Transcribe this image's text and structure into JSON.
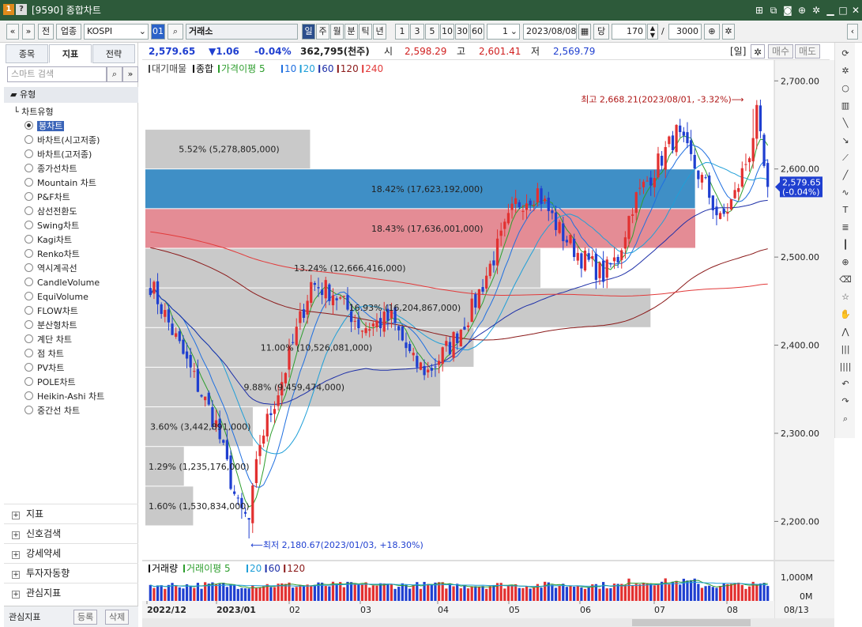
{
  "window": {
    "title": "[9590] 종합차트",
    "icons": {
      "app": "app-icon",
      "help": "help-icon"
    },
    "controls": [
      "new-window-icon",
      "copy-window-icon",
      "camera-icon",
      "lock-icon",
      "gear-icon",
      "minimize-icon",
      "maximize-icon",
      "close-icon"
    ]
  },
  "toolbar": {
    "prev": "«",
    "next": "»",
    "jeon": "전",
    "category": "업종",
    "symbol": "KOSPI",
    "badge": "01",
    "market": "거래소",
    "periods": [
      "일",
      "주",
      "월",
      "분",
      "틱",
      "년"
    ],
    "active_period": "일",
    "minutes": [
      "1",
      "3",
      "5",
      "10",
      "30",
      "60"
    ],
    "interval": "1",
    "date": "2023/08/08",
    "dang": "당",
    "count": "170",
    "slash": "/",
    "total": "3000"
  },
  "quote": {
    "price": "2,579.65",
    "change": "▼1.06",
    "pct": "-0.04%",
    "volume": "362,795(천주)",
    "open_label": "시",
    "open": "2,598.29",
    "high_label": "고",
    "high": "2,601.41",
    "low_label": "저",
    "low": "2,569.79",
    "period_label": "[일]",
    "buy": "매수",
    "sell": "매도"
  },
  "left_panel": {
    "tabs": [
      "종목",
      "지표",
      "전략"
    ],
    "active_tab": "지표",
    "search_placeholder": "스마트 검색",
    "type_header": "유형",
    "tree_root": "차트유형",
    "chart_types": [
      "봉차트",
      "바차트(시고저종)",
      "바차트(고저종)",
      "종가선차트",
      "Mountain 차트",
      "P&F차트",
      "삼선전환도",
      "Swing차트",
      "Kagi차트",
      "Renko차트",
      "역시계곡선",
      "CandleVolume",
      "EquiVolume",
      "FLOW차트",
      "분산형차트",
      "계단 차트",
      "점 차트",
      "PV차트",
      "POLE차트",
      "Heikin-Ashi 차트",
      "중간선 차트"
    ],
    "selected_type": "봉차트",
    "groups": [
      "지표",
      "신호검색",
      "강세약세",
      "투자자동향",
      "관심지표"
    ],
    "watch": {
      "label": "관심지표",
      "register": "등록",
      "delete": "삭제"
    }
  },
  "chart_data": {
    "type": "candlestick",
    "price_legend": [
      {
        "label": "대기매물",
        "color": "#444444"
      },
      {
        "label": "종합",
        "color": "#000000"
      },
      {
        "label": "가격이평 5",
        "color": "#2e9e2e"
      },
      {
        "label": "10",
        "color": "#1f6fe0"
      },
      {
        "label": "20",
        "color": "#1f9fd8"
      },
      {
        "label": "60",
        "color": "#1d2fa8"
      },
      {
        "label": "120",
        "color": "#8b1a1a"
      },
      {
        "label": "240",
        "color": "#e23a3a"
      }
    ],
    "volume_legend": [
      {
        "label": "거래량",
        "color": "#000000"
      },
      {
        "label": "거래이평 5",
        "color": "#2e9e2e"
      },
      {
        "label": "20",
        "color": "#1f9fd8"
      },
      {
        "label": "60",
        "color": "#1d2fa8"
      },
      {
        "label": "120",
        "color": "#8b1a1a"
      }
    ],
    "price_axis": {
      "min": 2160,
      "max": 2720,
      "ticks": [
        "2,700.00",
        "2,600.00",
        "2,500.00",
        "2,400.00",
        "2,300.00",
        "2,200.00"
      ]
    },
    "volume_axis": {
      "ticks": [
        "1,000M",
        "0M"
      ],
      "max": 1000
    },
    "x_axis": [
      "2022/12",
      "2023/01",
      "02",
      "03",
      "04",
      "05",
      "06",
      "07",
      "08"
    ],
    "last_date": "08/13",
    "current": {
      "price": "2,579.65",
      "pct": "(-0.04%)",
      "value": 2579.65
    },
    "high_note": "최고 2,668.21(2023/08/01, -3.32%)",
    "low_note": "최저 2,180.67(2023/01/03, +18.30%)",
    "high_value": 2668.21,
    "low_value": 2180.67,
    "volume_profile": [
      {
        "low": 2195,
        "high": 2240,
        "pct": 1.6,
        "label": "1.60% (1,530,834,000)"
      },
      {
        "low": 2240,
        "high": 2285,
        "pct": 1.29,
        "label": "1.29% (1,235,176,000)"
      },
      {
        "low": 2285,
        "high": 2330,
        "pct": 3.6,
        "label": "3.60% (3,442,891,000)"
      },
      {
        "low": 2330,
        "high": 2375,
        "pct": 9.88,
        "label": "9.88% (9,459,474,000)"
      },
      {
        "low": 2375,
        "high": 2420,
        "pct": 11.0,
        "label": "11.00% (10,526,081,000)"
      },
      {
        "low": 2420,
        "high": 2465,
        "pct": 16.93,
        "label": "16.93% (16,204,867,000)"
      },
      {
        "low": 2465,
        "high": 2510,
        "pct": 13.24,
        "label": "13.24% (12,666,416,000)"
      },
      {
        "low": 2510,
        "high": 2555,
        "pct": 18.43,
        "label": "18.43% (17,636,001,000)"
      },
      {
        "low": 2555,
        "high": 2600,
        "pct": 18.42,
        "label": "18.42% (17,623,192,000)"
      },
      {
        "low": 2600,
        "high": 2645,
        "pct": 5.52,
        "label": "5.52% (5,278,805,000)"
      }
    ],
    "ma_colors": {
      "ma5": "#2e9e2e",
      "ma10": "#1f6fe0",
      "ma20": "#1f9fd8",
      "ma60": "#1d2fa8",
      "ma120": "#8b1a1a",
      "ma240": "#e23a3a"
    },
    "up_color": "#e23030",
    "down_color": "#1f3fd0"
  },
  "right_tools": [
    "refresh-icon",
    "gear-icon",
    "circle-icon",
    "indicator-icon",
    "line-tool-icon",
    "ray-tool-icon",
    "trend-tool-icon",
    "slash-tool-icon",
    "auto-tool-icon",
    "text-tool-icon",
    "fib-tool-icon",
    "candle-tool-icon",
    "zoom-icon",
    "eraser-icon",
    "star-icon",
    "hand-icon",
    "zigzag-icon",
    "bars-icon",
    "bars2-icon",
    "undo-icon",
    "redo-icon",
    "search-icon"
  ]
}
